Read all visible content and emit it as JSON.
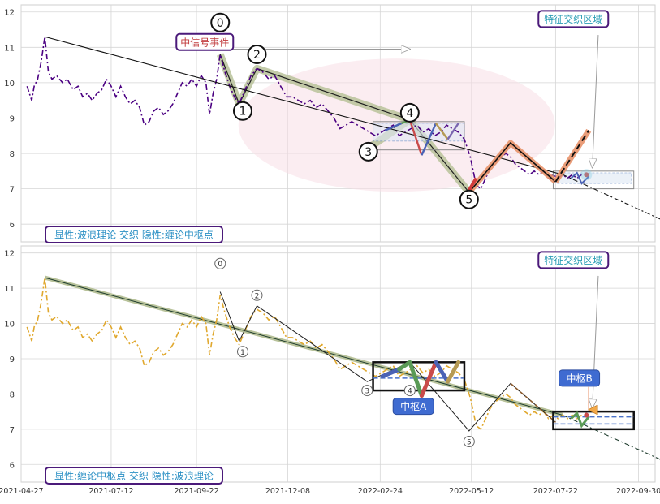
{
  "chart_data": [
    {
      "type": "line",
      "panel": "top",
      "ylim": [
        5.5,
        12.2
      ],
      "yticks": [
        6,
        7,
        8,
        9,
        10,
        11,
        12
      ],
      "grid": true,
      "series": [
        {
          "style": "dashdot",
          "color": "#4b0082",
          "values": [
            [
              "2021-05-02",
              9.9
            ],
            [
              "2021-05-04",
              9.7
            ],
            [
              "2021-05-06",
              9.5
            ],
            [
              "2021-05-08",
              9.9
            ],
            [
              "2021-05-11",
              10.1
            ],
            [
              "2021-05-14",
              10.6
            ],
            [
              "2021-05-17",
              11.3
            ],
            [
              "2021-05-20",
              10.3
            ],
            [
              "2021-05-23",
              10.1
            ],
            [
              "2021-05-27",
              10.2
            ],
            [
              "2021-06-01",
              10.0
            ],
            [
              "2021-06-05",
              10.1
            ],
            [
              "2021-06-10",
              9.8
            ],
            [
              "2021-06-14",
              9.9
            ],
            [
              "2021-06-18",
              9.6
            ],
            [
              "2021-06-22",
              9.7
            ],
            [
              "2021-06-26",
              9.5
            ],
            [
              "2021-06-30",
              9.7
            ],
            [
              "2021-07-04",
              9.8
            ],
            [
              "2021-07-08",
              10.1
            ],
            [
              "2021-07-12",
              9.9
            ],
            [
              "2021-07-16",
              9.6
            ],
            [
              "2021-07-20",
              9.9
            ],
            [
              "2021-07-24",
              9.6
            ],
            [
              "2021-07-28",
              9.4
            ],
            [
              "2021-08-01",
              9.5
            ],
            [
              "2021-08-05",
              9.3
            ],
            [
              "2021-08-09",
              8.8
            ],
            [
              "2021-08-13",
              8.9
            ],
            [
              "2021-08-17",
              9.2
            ],
            [
              "2021-08-21",
              9.3
            ],
            [
              "2021-08-25",
              9.1
            ],
            [
              "2021-08-29",
              9.2
            ],
            [
              "2021-09-02",
              9.4
            ],
            [
              "2021-09-06",
              9.7
            ],
            [
              "2021-09-10",
              10.0
            ],
            [
              "2021-09-14",
              9.9
            ],
            [
              "2021-09-18",
              10.1
            ],
            [
              "2021-09-22",
              9.9
            ],
            [
              "2021-09-26",
              10.2
            ],
            [
              "2021-09-30",
              10.0
            ],
            [
              "2021-10-03",
              9.1
            ],
            [
              "2021-10-06",
              9.7
            ],
            [
              "2021-10-09",
              10.1
            ],
            [
              "2021-10-12",
              10.8
            ],
            [
              "2021-10-16",
              10.3
            ],
            [
              "2021-10-20",
              9.9
            ],
            [
              "2021-10-24",
              9.6
            ],
            [
              "2021-10-28",
              9.4
            ],
            [
              "2021-11-02",
              9.8
            ],
            [
              "2021-11-07",
              10.2
            ],
            [
              "2021-11-12",
              10.4
            ],
            [
              "2021-11-17",
              10.3
            ],
            [
              "2021-11-22",
              10.1
            ],
            [
              "2021-11-27",
              10.2
            ],
            [
              "2021-12-02",
              9.9
            ],
            [
              "2021-12-07",
              9.6
            ],
            [
              "2021-12-12",
              9.6
            ],
            [
              "2021-12-17",
              9.5
            ],
            [
              "2021-12-22",
              9.4
            ],
            [
              "2021-12-27",
              9.5
            ],
            [
              "2022-01-01",
              9.3
            ],
            [
              "2022-01-06",
              9.4
            ],
            [
              "2022-01-11",
              9.2
            ],
            [
              "2022-01-16",
              9.0
            ],
            [
              "2022-01-21",
              8.7
            ],
            [
              "2022-01-26",
              8.8
            ],
            [
              "2022-01-31",
              8.9
            ],
            [
              "2022-02-05",
              8.8
            ],
            [
              "2022-02-10",
              8.7
            ],
            [
              "2022-02-15",
              8.6
            ],
            [
              "2022-02-20",
              8.5
            ],
            [
              "2022-02-25",
              8.6
            ],
            [
              "2022-03-02",
              8.7
            ],
            [
              "2022-03-07",
              8.8
            ],
            [
              "2022-03-12",
              8.5
            ],
            [
              "2022-03-17",
              8.6
            ],
            [
              "2022-03-22",
              8.7
            ],
            [
              "2022-03-27",
              8.8
            ],
            [
              "2022-04-01",
              8.6
            ],
            [
              "2022-04-06",
              8.7
            ],
            [
              "2022-04-11",
              8.5
            ],
            [
              "2022-04-16",
              8.6
            ],
            [
              "2022-04-21",
              8.8
            ],
            [
              "2022-04-26",
              8.7
            ],
            [
              "2022-05-01",
              8.6
            ],
            [
              "2022-05-06",
              8.4
            ],
            [
              "2022-05-11",
              7.9
            ],
            [
              "2022-05-16",
              7.1
            ],
            [
              "2022-05-20",
              7.0
            ],
            [
              "2022-05-24",
              7.3
            ],
            [
              "2022-05-28",
              7.6
            ],
            [
              "2022-06-02",
              7.8
            ],
            [
              "2022-06-06",
              7.9
            ],
            [
              "2022-06-10",
              8.0
            ],
            [
              "2022-06-14",
              7.9
            ],
            [
              "2022-06-18",
              7.7
            ],
            [
              "2022-06-22",
              7.6
            ],
            [
              "2022-06-26",
              7.5
            ],
            [
              "2022-06-30",
              7.4
            ],
            [
              "2022-07-04",
              7.5
            ],
            [
              "2022-07-08",
              7.4
            ],
            [
              "2022-07-12",
              7.5
            ],
            [
              "2022-07-16",
              7.3
            ],
            [
              "2022-07-20",
              7.4
            ],
            [
              "2022-07-24",
              7.3
            ],
            [
              "2022-07-28",
              7.4
            ],
            [
              "2022-08-01",
              7.3
            ],
            [
              "2022-08-05",
              7.4
            ],
            [
              "2022-08-09",
              7.3
            ],
            [
              "2022-08-13",
              7.4
            ]
          ]
        }
      ],
      "trend_line": {
        "style": "solid-then-dashdot",
        "points": [
          [
            "2021-05-17",
            11.3
          ],
          [
            "2022-07-28",
            7.4
          ],
          [
            "2022-10-31",
            5.95
          ]
        ]
      },
      "wave_labels": [
        {
          "label": "0",
          "x": "2021-10-12",
          "y": 11.7
        },
        {
          "label": "1",
          "x": "2021-10-31",
          "y": 9.2
        },
        {
          "label": "2",
          "x": "2021-11-12",
          "y": 10.8
        },
        {
          "label": "3",
          "x": "2022-02-14",
          "y": 8.05
        },
        {
          "label": "4",
          "x": "2022-03-21",
          "y": 9.15
        },
        {
          "label": "5",
          "x": "2022-05-10",
          "y": 6.7
        }
      ],
      "annotations": [
        {
          "text": "中信号事件",
          "x": "2021-09-29",
          "y": 11.15,
          "color": "#c0393b"
        },
        {
          "text": "特征交织区域",
          "x": "2022-08-06",
          "y": 11.8,
          "color": "#2a9db5"
        }
      ],
      "footer": "显性:波浪理论 交织 隐性:缠论中枢点"
    },
    {
      "type": "line",
      "panel": "bottom",
      "ylim": [
        5.5,
        12.2
      ],
      "yticks": [
        6,
        7,
        8,
        9,
        10,
        11,
        12
      ],
      "xticks": [
        "2021-04-27",
        "2021-07-12",
        "2021-09-22",
        "2021-12-08",
        "2022-02-24",
        "2022-05-12",
        "2022-07-22",
        "2022-09-30"
      ],
      "grid": true,
      "series": [
        {
          "style": "dashdot",
          "color": "#e0a82e",
          "same_as": "top"
        }
      ],
      "wave_labels": [
        {
          "label": "0",
          "x": "2021-10-12",
          "y": 11.7
        },
        {
          "label": "1",
          "x": "2021-10-31",
          "y": 9.2
        },
        {
          "label": "2",
          "x": "2021-11-12",
          "y": 10.8
        },
        {
          "label": "3",
          "x": "2022-02-13",
          "y": 8.1
        },
        {
          "label": "4",
          "x": "2022-03-21",
          "y": 8.1
        },
        {
          "label": "5",
          "x": "2022-05-10",
          "y": 6.65
        }
      ],
      "annotations": [
        {
          "text": "中枢A",
          "x": "2022-03-24",
          "y": 7.65
        },
        {
          "text": "中枢B",
          "x": "2022-08-11",
          "y": 8.45
        },
        {
          "text": "特征交织区域",
          "x": "2022-08-06",
          "y": 11.8,
          "color": "#2a9db5"
        }
      ],
      "footer": "显性:缠论中枢点 交织 隐性:波浪理论"
    }
  ]
}
